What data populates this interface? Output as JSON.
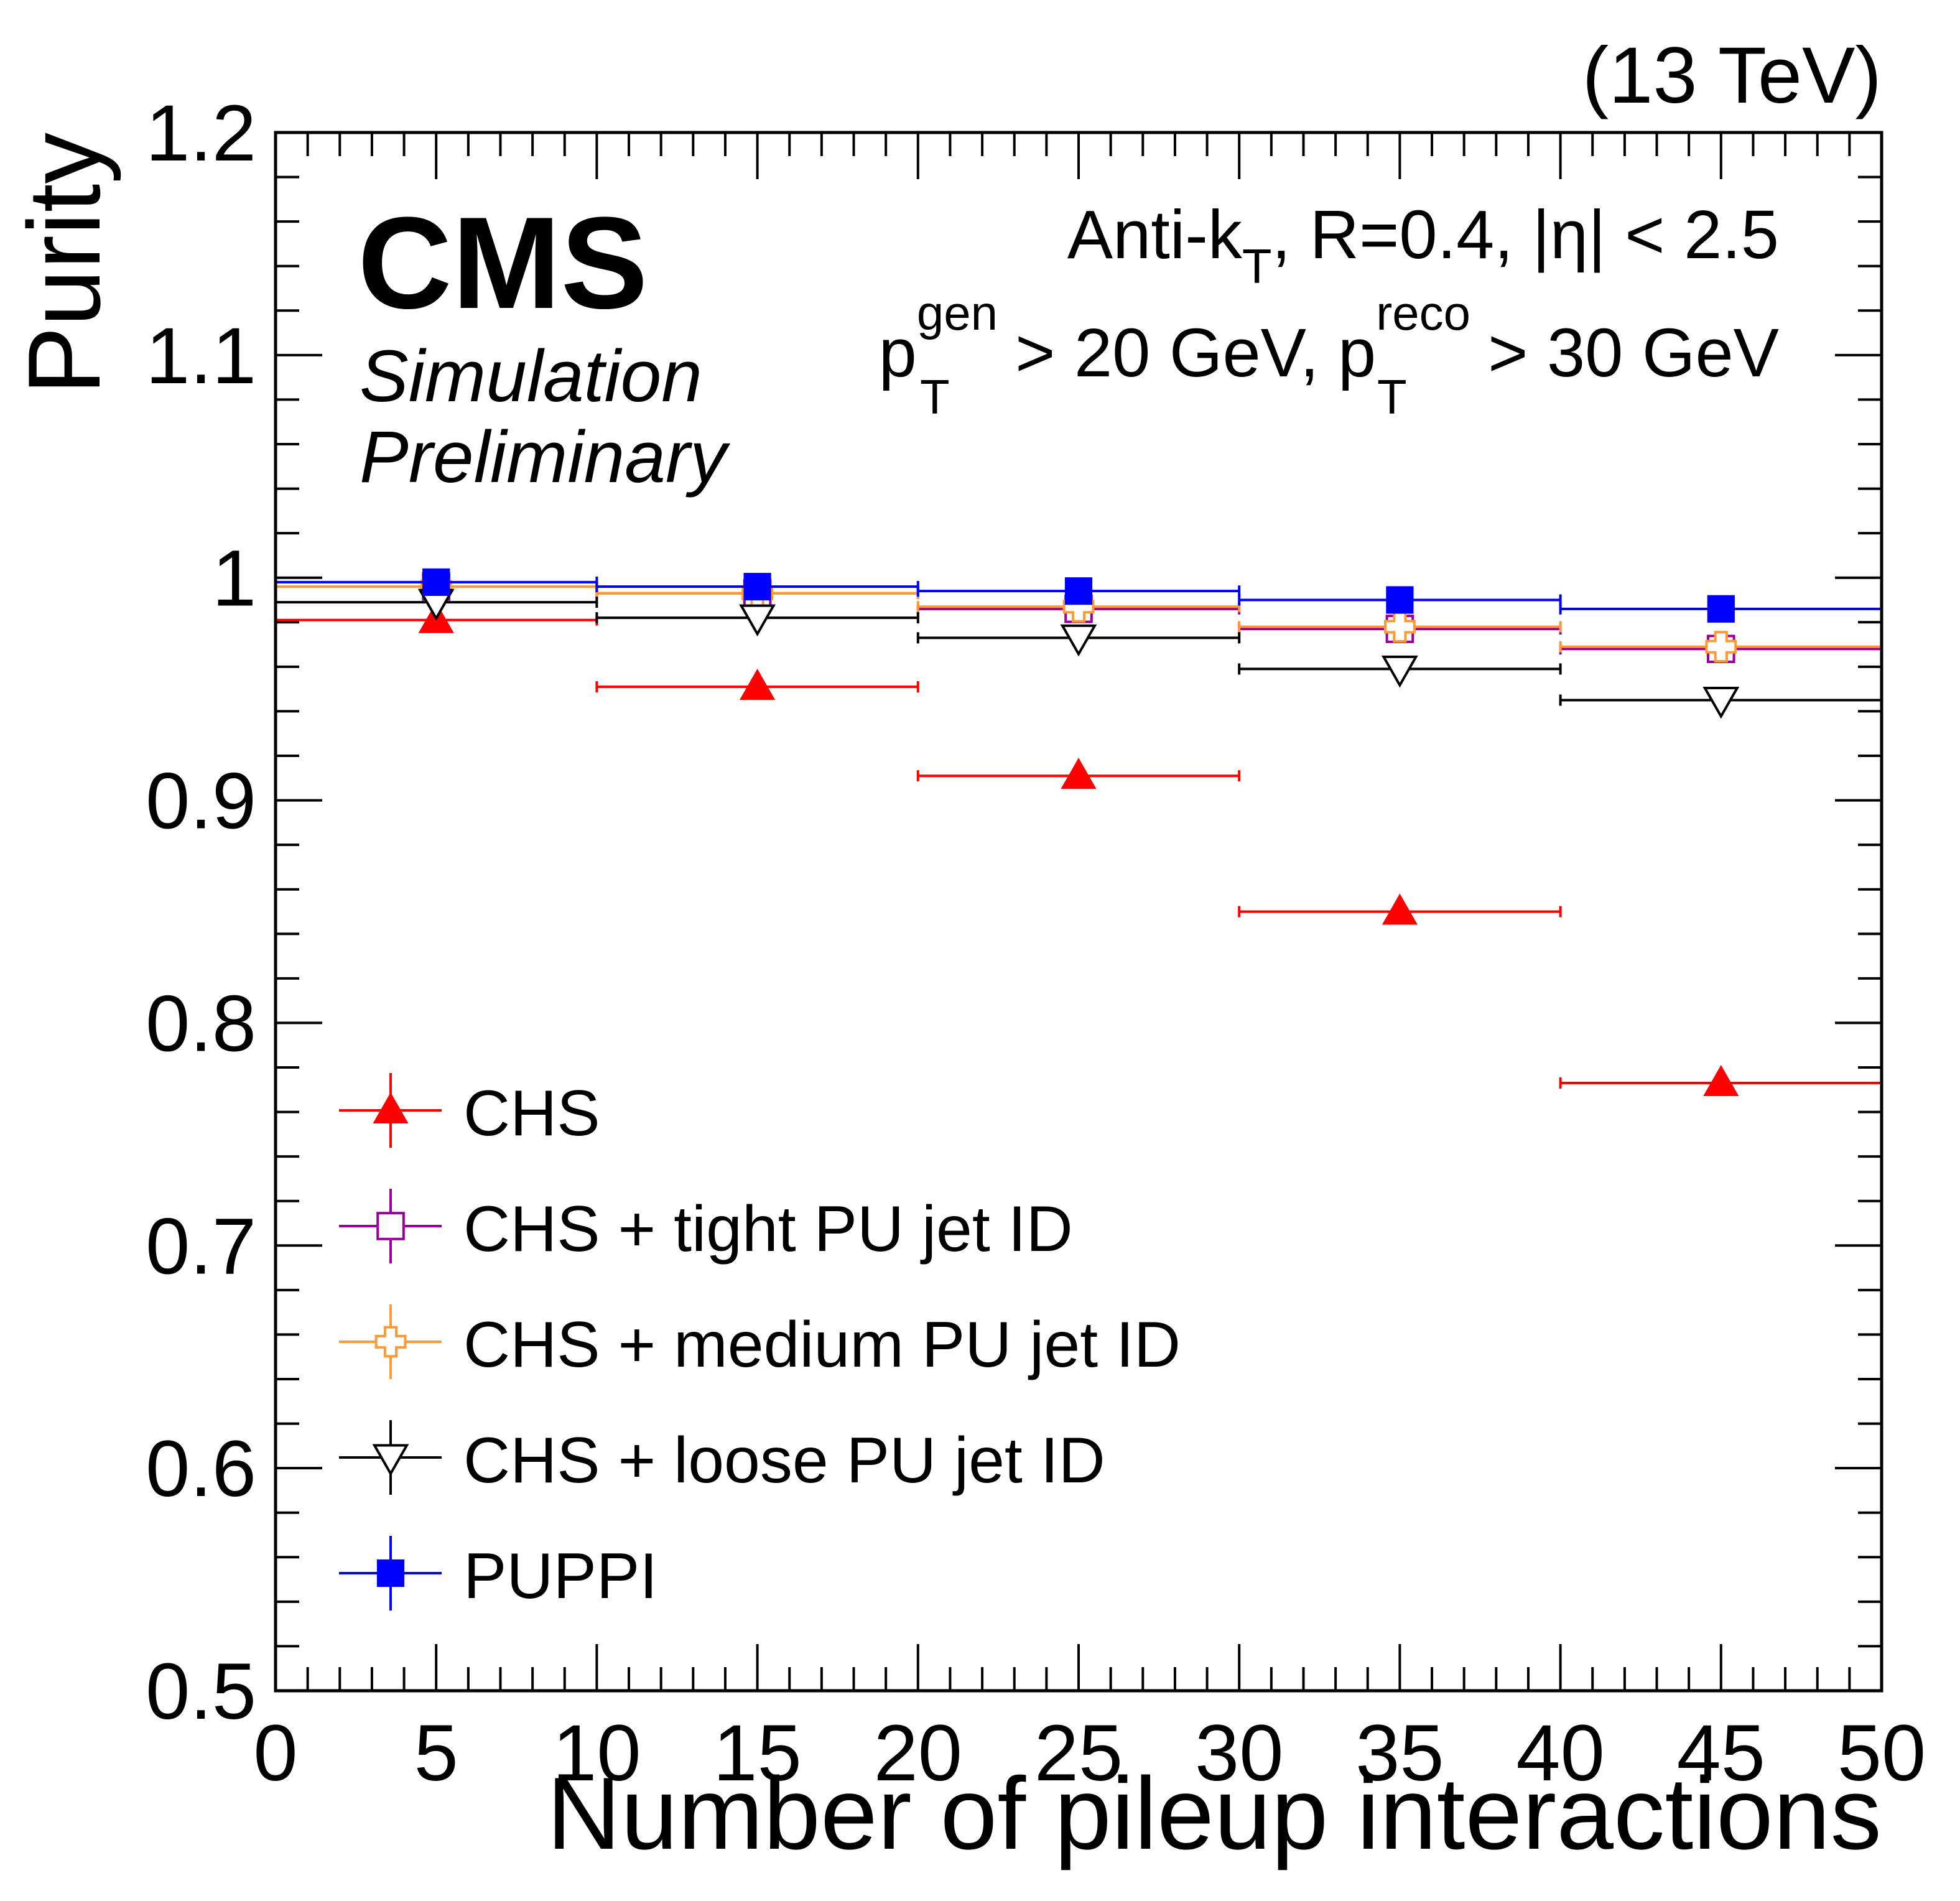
{
  "header": {
    "energy": "(13 TeV)",
    "experiment": "CMS",
    "status_line1": "Simulation",
    "status_line2": "Preliminary"
  },
  "cuts": {
    "line1_prefix": "Anti-k",
    "line1_sub": "T",
    "line1_suffix": ", R=0.4, |η| < 2.5",
    "line2_p1": "p",
    "line2_sup1": "gen",
    "line2_sub1": "T",
    "line2_mid": " > 20 GeV, p",
    "line2_sup2": "reco",
    "line2_sub2": "T",
    "line2_end": " > 30 GeV"
  },
  "chart_data": {
    "type": "scatter",
    "xlabel": "Number of pileup interactions",
    "ylabel": "Purity",
    "xlim": [
      0,
      50
    ],
    "ylim": [
      0.5,
      1.2
    ],
    "xticks": [
      "0",
      "5",
      "10",
      "15",
      "20",
      "25",
      "30",
      "35",
      "40",
      "45",
      "50"
    ],
    "yticks": [
      "0.5",
      "0.6",
      "0.7",
      "0.8",
      "0.9",
      "1",
      "1.1",
      "1.2"
    ],
    "bins": [
      [
        0,
        10
      ],
      [
        10,
        20
      ],
      [
        20,
        30
      ],
      [
        30,
        40
      ],
      [
        40,
        50
      ]
    ],
    "x": [
      5,
      15,
      25,
      35,
      45
    ],
    "legend_position": "bottom-left",
    "series": [
      {
        "name": "CHS",
        "color": "#ff0000",
        "marker": "triangle-up-filled",
        "values": [
          0.981,
          0.951,
          0.911,
          0.85,
          0.773
        ]
      },
      {
        "name": "CHS + tight PU jet ID",
        "color": "#990099",
        "marker": "square-open",
        "values": [
          0.996,
          0.993,
          0.986,
          0.977,
          0.968
        ]
      },
      {
        "name": "CHS + medium PU jet ID",
        "color": "#ff9933",
        "marker": "cross-open",
        "values": [
          0.996,
          0.993,
          0.987,
          0.978,
          0.969
        ]
      },
      {
        "name": "CHS + loose PU jet ID",
        "color": "#000000",
        "marker": "triangle-down-open",
        "values": [
          0.989,
          0.982,
          0.973,
          0.959,
          0.945
        ]
      },
      {
        "name": "PUPPI",
        "color": "#0000ff",
        "marker": "square-filled",
        "values": [
          0.998,
          0.996,
          0.994,
          0.99,
          0.986
        ]
      }
    ]
  }
}
